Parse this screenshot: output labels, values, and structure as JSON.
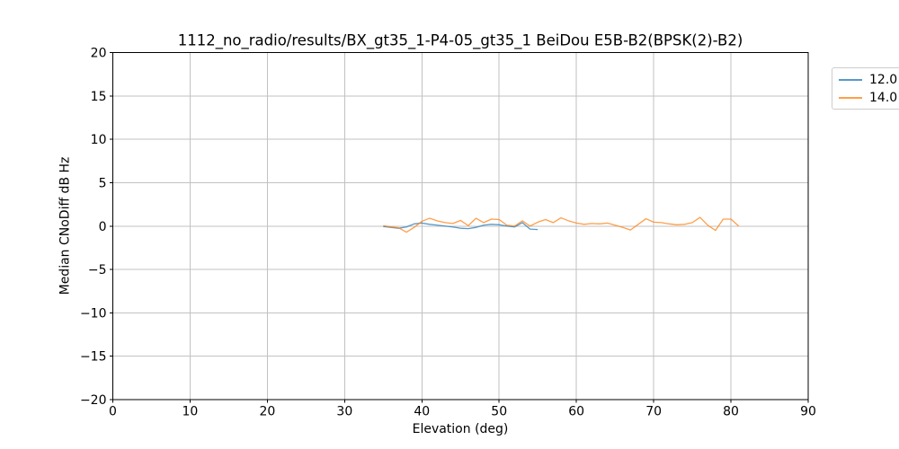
{
  "figure": {
    "background": "#ffffff",
    "spine_color": "#000000",
    "grid_color": "#c2c2c2",
    "tick_color": "#000000"
  },
  "chart_data": {
    "type": "line",
    "title": "1112_no_radio/results/BX_gt35_1-P4-05_gt35_1 BeiDou E5B-B2(BPSK(2)-B2)",
    "xlabel": "Elevation (deg)",
    "ylabel": "Median CNoDiff dB Hz",
    "xlim": [
      0,
      90
    ],
    "ylim": [
      -20,
      20
    ],
    "xticks": [
      0,
      10,
      20,
      30,
      40,
      50,
      60,
      70,
      80,
      90
    ],
    "yticks": [
      20,
      15,
      10,
      5,
      0,
      -5,
      -10,
      -15,
      -20
    ],
    "grid": true,
    "legend_position": "upper right outside, clipped at figure edge",
    "series": [
      {
        "name": "12.0",
        "color": "#1f77b4",
        "points": [
          [
            35,
            -0.05
          ],
          [
            36,
            -0.15
          ],
          [
            37,
            -0.25
          ],
          [
            38,
            -0.1
          ],
          [
            39,
            0.25
          ],
          [
            40,
            0.35
          ],
          [
            41,
            0.2
          ],
          [
            42,
            0.1
          ],
          [
            43,
            0.0
          ],
          [
            44,
            -0.1
          ],
          [
            45,
            -0.25
          ],
          [
            46,
            -0.3
          ],
          [
            47,
            -0.15
          ],
          [
            48,
            0.1
          ],
          [
            49,
            0.2
          ],
          [
            50,
            0.15
          ],
          [
            51,
            0.0
          ],
          [
            52,
            -0.1
          ],
          [
            53,
            0.4
          ],
          [
            54,
            -0.35
          ],
          [
            55,
            -0.4
          ]
        ]
      },
      {
        "name": "14.0",
        "color": "#ff7f0e",
        "points": [
          [
            35,
            0.05
          ],
          [
            36,
            -0.1
          ],
          [
            37,
            -0.2
          ],
          [
            38,
            -0.7
          ],
          [
            39,
            -0.15
          ],
          [
            40,
            0.55
          ],
          [
            41,
            0.9
          ],
          [
            42,
            0.6
          ],
          [
            43,
            0.4
          ],
          [
            44,
            0.3
          ],
          [
            45,
            0.65
          ],
          [
            46,
            0.05
          ],
          [
            47,
            0.9
          ],
          [
            48,
            0.4
          ],
          [
            49,
            0.8
          ],
          [
            50,
            0.75
          ],
          [
            51,
            0.1
          ],
          [
            52,
            0.0
          ],
          [
            53,
            0.6
          ],
          [
            54,
            0.0
          ],
          [
            55,
            0.45
          ],
          [
            56,
            0.75
          ],
          [
            57,
            0.4
          ],
          [
            58,
            0.95
          ],
          [
            59,
            0.6
          ],
          [
            60,
            0.35
          ],
          [
            61,
            0.2
          ],
          [
            62,
            0.3
          ],
          [
            63,
            0.25
          ],
          [
            64,
            0.35
          ],
          [
            65,
            0.1
          ],
          [
            66,
            -0.15
          ],
          [
            67,
            -0.45
          ],
          [
            68,
            0.2
          ],
          [
            69,
            0.85
          ],
          [
            70,
            0.45
          ],
          [
            71,
            0.4
          ],
          [
            72,
            0.25
          ],
          [
            73,
            0.15
          ],
          [
            74,
            0.2
          ],
          [
            75,
            0.4
          ],
          [
            76,
            1.0
          ],
          [
            77,
            0.1
          ],
          [
            78,
            -0.5
          ],
          [
            79,
            0.8
          ],
          [
            80,
            0.8
          ],
          [
            81,
            0.0
          ]
        ]
      }
    ]
  }
}
